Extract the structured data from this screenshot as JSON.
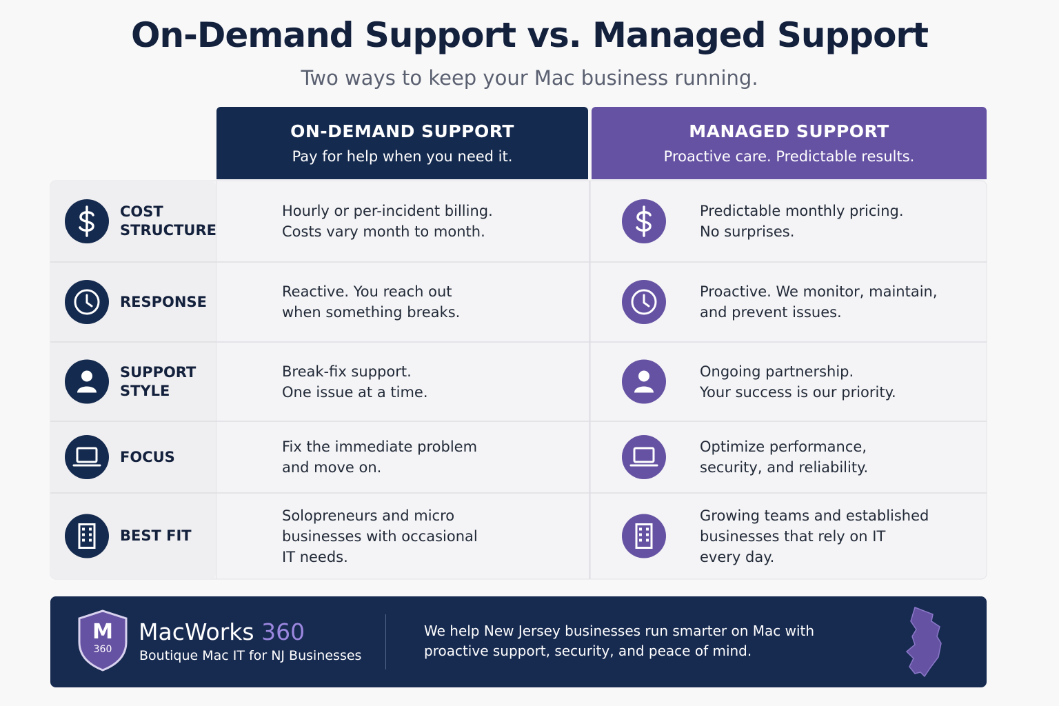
{
  "header": {
    "title": "On-Demand Support vs. Managed Support",
    "subtitle": "Two ways to keep your Mac business running."
  },
  "columns": [
    {
      "title": "ON-DEMAND SUPPORT",
      "subtitle": "Pay for help when you need it."
    },
    {
      "title": "MANAGED SUPPORT",
      "subtitle": "Proactive care. Predictable results."
    }
  ],
  "rows": [
    {
      "icon": "dollar",
      "label": [
        "COST",
        "STRUCTURE"
      ],
      "on_demand": [
        "Hourly or per-incident billing.",
        "Costs vary month to month."
      ],
      "managed": [
        "Predictable monthly pricing.",
        "No surprises."
      ]
    },
    {
      "icon": "clock",
      "label": [
        "RESPONSE"
      ],
      "on_demand": [
        "Reactive. You reach out",
        "when something breaks."
      ],
      "managed": [
        "Proactive. We monitor, maintain,",
        "and prevent issues."
      ]
    },
    {
      "icon": "person",
      "label": [
        "SUPPORT",
        "STYLE"
      ],
      "on_demand": [
        "Break-fix support.",
        "One issue at a time."
      ],
      "managed": [
        "Ongoing partnership.",
        "Your success is our priority."
      ]
    },
    {
      "icon": "laptop",
      "label": [
        "FOCUS"
      ],
      "on_demand": [
        "Fix the immediate problem",
        "and move on."
      ],
      "managed": [
        "Optimize performance,",
        "security, and reliability."
      ]
    },
    {
      "icon": "building",
      "label": [
        "BEST FIT"
      ],
      "on_demand": [
        "Solopreneurs and micro",
        "businesses with occasional",
        "IT needs."
      ],
      "managed": [
        "Growing teams and established",
        "businesses that rely on IT",
        "every day."
      ]
    }
  ],
  "footer": {
    "logo": {
      "letter": "M",
      "number": "360"
    },
    "brand": "MacWorks",
    "brand_accent": "360",
    "tagline": "Boutique Mac IT for NJ Businesses",
    "description": [
      "We help New Jersey businesses run smarter on Mac with",
      "proactive support, security, and peace of mind."
    ]
  }
}
